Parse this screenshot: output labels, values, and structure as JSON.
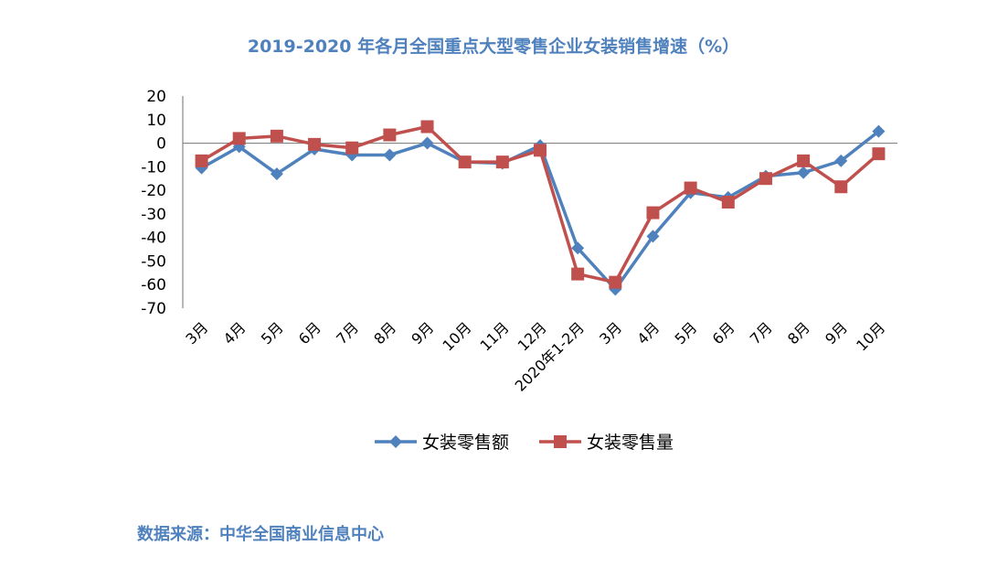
{
  "chart_data": {
    "type": "line",
    "title": "2019-2020 年各月全国重点大型零售企业女装销售增速（%）",
    "categories": [
      "3月",
      "4月",
      "5月",
      "6月",
      "7月",
      "8月",
      "9月",
      "10月",
      "11月",
      "12月",
      "2020年1-2月",
      "3月",
      "4月",
      "5月",
      "6月",
      "7月",
      "8月",
      "9月",
      "10月"
    ],
    "series": [
      {
        "name": "女装零售额",
        "color": "#4f81bd",
        "marker": "diamond",
        "values": [
          -10.5,
          -1.5,
          -13,
          -2.5,
          -5,
          -5,
          0,
          -8,
          -8.5,
          -1,
          -44.5,
          -62,
          -39.5,
          -21,
          -23,
          -14,
          -12.5,
          -7.5,
          5
        ]
      },
      {
        "name": "女装零售量",
        "color": "#c0504d",
        "marker": "square",
        "values": [
          -7.5,
          2,
          3,
          -0.5,
          -2,
          3.5,
          7,
          -8,
          -8,
          -3,
          -55.5,
          -59,
          -29.5,
          -19,
          -25,
          -15,
          -7.5,
          -18.5,
          -4.5
        ]
      }
    ],
    "ylim": [
      -70,
      20
    ],
    "yticks": [
      20,
      10,
      0,
      -10,
      -20,
      -30,
      -40,
      -50,
      -60,
      -70
    ],
    "grid": false,
    "legend": "bottom"
  },
  "source": "数据来源：中华全国商业信息中心"
}
